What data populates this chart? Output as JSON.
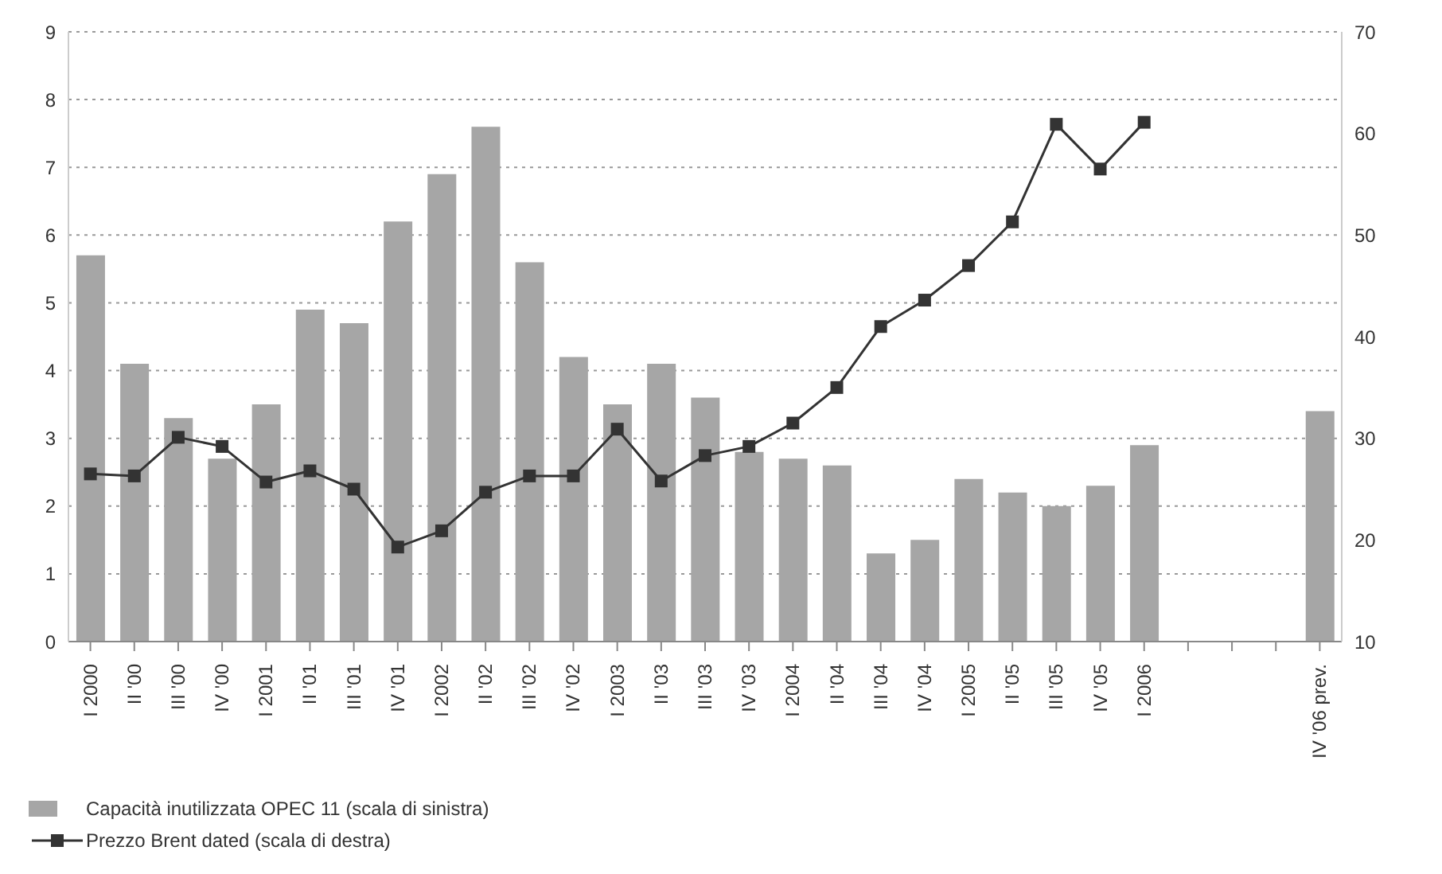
{
  "chart_data": {
    "type": "bar",
    "categories": [
      "I 2000",
      "II '00",
      "III '00",
      "IV '00",
      "I 2001",
      "II '01",
      "III '01",
      "IV '01",
      "I 2002",
      "II '02",
      "III '02",
      "IV '02",
      "I 2003",
      "II '03",
      "III '03",
      "IV '03",
      "I 2004",
      "II '04",
      "III '04",
      "IV '04",
      "I 2005",
      "II '05",
      "III '05",
      "IV '05",
      "I 2006",
      null,
      null,
      null,
      "IV '06 prev."
    ],
    "series": [
      {
        "name": "Capacità inutilizzata OPEC 11 (scala di sinistra)",
        "color": "#a6a6a6",
        "values": [
          5.7,
          4.1,
          3.3,
          2.7,
          3.5,
          4.9,
          4.7,
          6.2,
          6.9,
          7.6,
          5.6,
          4.2,
          3.5,
          4.1,
          3.6,
          2.8,
          2.7,
          2.6,
          1.3,
          1.5,
          2.4,
          2.2,
          2.0,
          2.3,
          2.9,
          null,
          null,
          null,
          3.4
        ]
      },
      {
        "name": "Prezzo Brent dated (scala di destra)",
        "type": "line",
        "axis": "y2",
        "color": "#333333",
        "marker": "square",
        "values": [
          26.5,
          26.3,
          30.1,
          29.2,
          25.7,
          26.8,
          25.0,
          19.3,
          20.9,
          24.7,
          26.3,
          26.3,
          30.9,
          25.8,
          28.3,
          29.2,
          31.5,
          35.0,
          41.0,
          43.6,
          47.0,
          51.3,
          60.9,
          56.5,
          61.1,
          null,
          null,
          null,
          null
        ]
      }
    ],
    "ylim": [
      0,
      9
    ],
    "yticks": [
      0,
      1,
      2,
      3,
      4,
      5,
      6,
      7,
      8,
      9
    ],
    "y2lim": [
      10,
      70
    ],
    "y2ticks": [
      10,
      20,
      30,
      40,
      50,
      60,
      70
    ],
    "grid": "y",
    "legend": "bottom left"
  }
}
